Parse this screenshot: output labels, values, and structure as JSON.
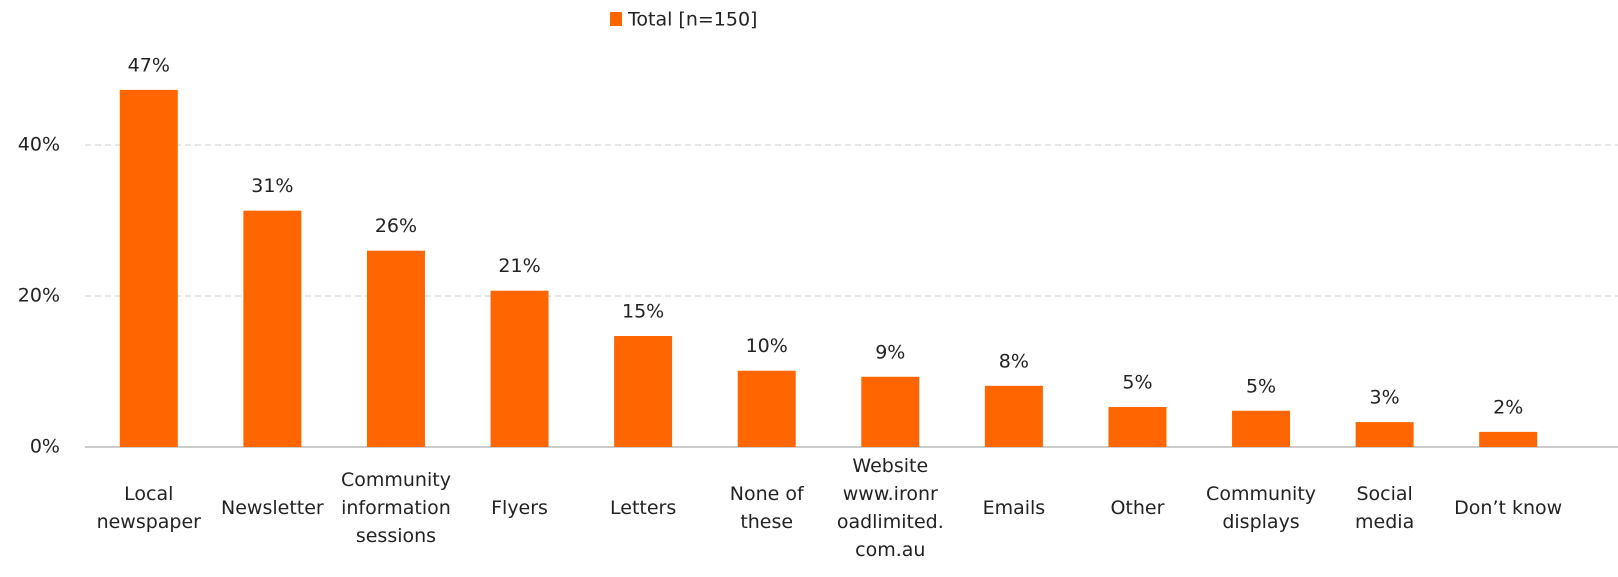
{
  "chart_data": {
    "type": "bar",
    "legend": "Total [n=150]",
    "categories": [
      "Local\nnewspaper",
      "Newsletter",
      "Community\ninformation\nsessions",
      "Flyers",
      "Letters",
      "None of\nthese",
      "Website\nwww.ironr\noadlimited.\ncom.au",
      "Emails",
      "Other",
      "Community\ndisplays",
      "Social\nmedia",
      "Don’t know"
    ],
    "values": [
      47.3,
      31.3,
      26.0,
      20.7,
      14.7,
      10.1,
      9.3,
      8.1,
      5.3,
      4.8,
      3.3,
      2.0
    ],
    "value_labels": [
      "47%",
      "31%",
      "26%",
      "21%",
      "15%",
      "10%",
      "9%",
      "8%",
      "5%",
      "5%",
      "3%",
      "2%"
    ],
    "color": "#ff6600",
    "ylim": [
      0,
      50
    ],
    "yticks": [
      {
        "value": 0,
        "label": "0%"
      },
      {
        "value": 20,
        "label": "20%"
      },
      {
        "value": 40,
        "label": "40%"
      }
    ],
    "grid": true
  }
}
